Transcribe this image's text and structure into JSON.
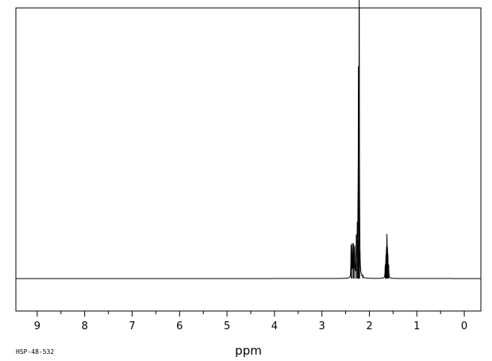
{
  "chart_data": {
    "type": "line",
    "title": "",
    "xlabel": "ppm",
    "ylabel": "",
    "xlim": [
      9.45,
      -0.35
    ],
    "x_reversed": true,
    "ylim": [
      -0.12,
      1.0
    ],
    "ticks": [
      "9",
      "8",
      "7",
      "6",
      "5",
      "4",
      "3",
      "2",
      "1",
      "0"
    ],
    "grid": false,
    "legend": "none",
    "baseline": 0,
    "peaks": [
      {
        "ppm": 2.385,
        "height": 0.122
      },
      {
        "ppm": 2.36,
        "height": 0.13
      },
      {
        "ppm": 2.335,
        "height": 0.13
      },
      {
        "ppm": 2.31,
        "height": 0.122
      },
      {
        "ppm": 2.275,
        "height": 0.14
      },
      {
        "ppm": 2.255,
        "height": 0.155
      },
      {
        "ppm": 2.24,
        "height": 0.145
      },
      {
        "ppm": 2.23,
        "height": 0.685
      },
      {
        "ppm": 2.215,
        "height": 1.0
      },
      {
        "ppm": 2.205,
        "height": 0.1
      },
      {
        "ppm": 2.14,
        "height": 0.008
      },
      {
        "ppm": 1.665,
        "height": 0.045
      },
      {
        "ppm": 1.65,
        "height": 0.065
      },
      {
        "ppm": 1.64,
        "height": 0.08
      },
      {
        "ppm": 1.63,
        "height": 0.13
      },
      {
        "ppm": 1.62,
        "height": 0.085
      },
      {
        "ppm": 1.61,
        "height": 0.065
      },
      {
        "ppm": 1.595,
        "height": 0.045
      }
    ]
  },
  "footer": {
    "spectrum_code": "HSP-48-532"
  }
}
